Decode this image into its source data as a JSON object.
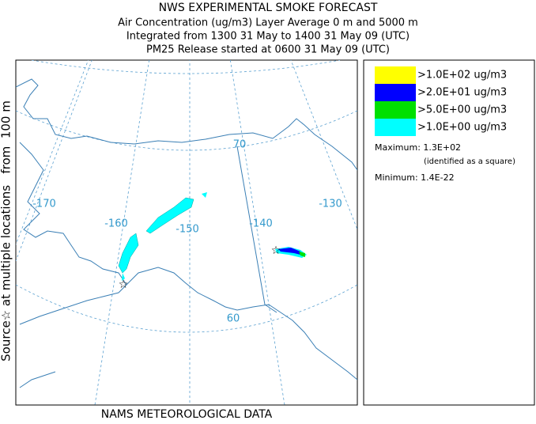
{
  "header": {
    "title": "NWS EXPERIMENTAL SMOKE FORECAST",
    "lines": [
      "Air Concentration (ug/m3) Layer Average    0 m and  5000 m",
      "Integrated from 1300 31 May to 1400 31 May 09 (UTC)",
      "PM25 Release started at 0600 31 May 09 (UTC)"
    ]
  },
  "side_label": "Source☆ at multiple locations   from  100 m",
  "footer": "NAMS METEOROLOGICAL DATA",
  "map": {
    "longitude_labels": [
      "-170",
      "-160",
      "-150",
      "-140",
      "-130"
    ],
    "latitude_labels": [
      "70",
      "60"
    ]
  },
  "legend": {
    "entries": [
      {
        "label": ">1.0E+02 ug/m3",
        "color": "#ffff00"
      },
      {
        "label": ">2.0E+01 ug/m3",
        "color": "#0000ff"
      },
      {
        "label": ">5.0E+00 ug/m3",
        "color": "#00e000"
      },
      {
        "label": ">1.0E+00 ug/m3",
        "color": "#00ffff"
      }
    ],
    "maximum": "Maximum: 1.3E+02",
    "maximum_note": "(identified as a square)",
    "minimum": "Minimum: 1.4E-22"
  }
}
